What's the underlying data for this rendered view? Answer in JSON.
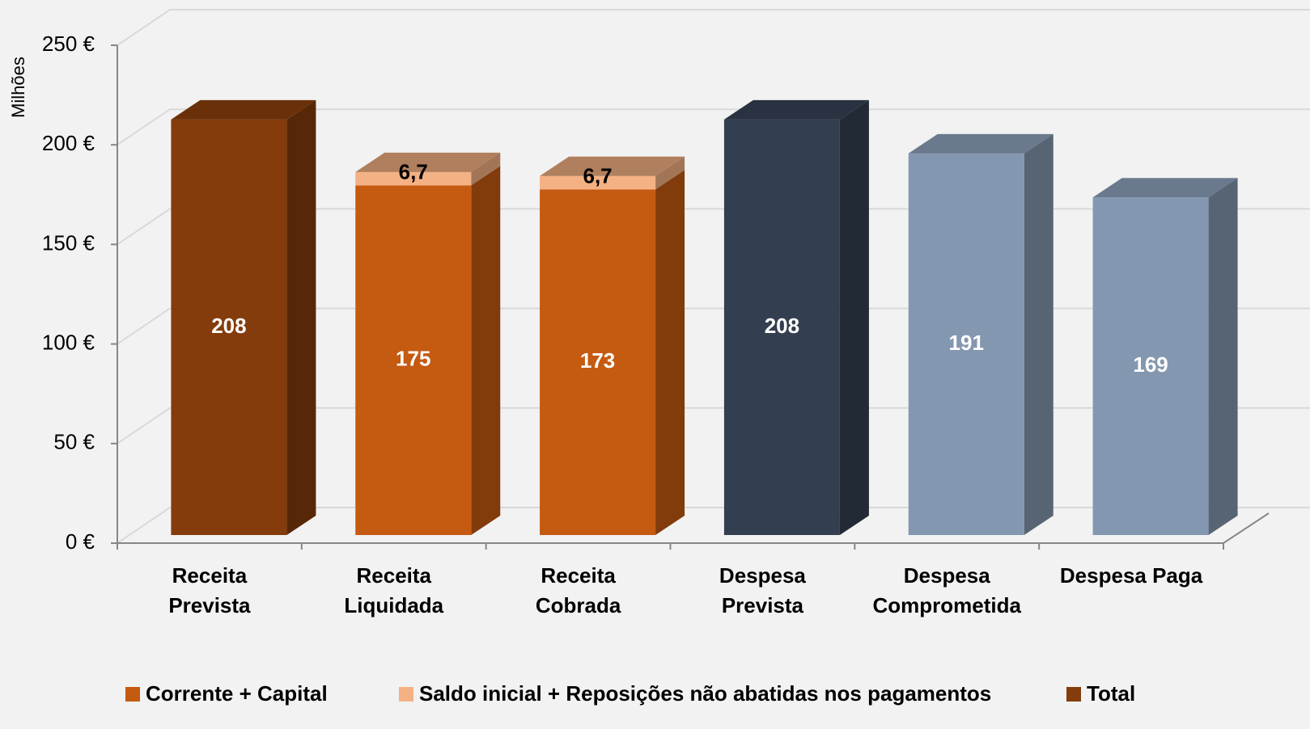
{
  "chart_data": {
    "type": "bar3d_stacked",
    "y_label": "Milhões",
    "categories": [
      [
        "Receita",
        "Prevista"
      ],
      [
        "Receita",
        "Liquidada"
      ],
      [
        "Receita",
        "Cobrada"
      ],
      [
        "Despesa",
        "Prevista"
      ],
      [
        "Despesa",
        "Comprometida"
      ],
      [
        "Despesa Paga"
      ]
    ],
    "series": [
      {
        "name": "Corrente + Capital",
        "color": "#c55a11",
        "values": [
          null,
          175,
          173,
          null,
          null,
          null
        ]
      },
      {
        "name": "Saldo inicial + Reposições não abatidas nos pagamentos",
        "color": "#f4b183",
        "values": [
          null,
          6.7,
          6.7,
          null,
          null,
          null
        ],
        "value_labels": [
          null,
          "6,7",
          "6,7",
          null,
          null,
          null
        ]
      },
      {
        "name": "Total",
        "color": "#843c0c",
        "values": [
          208,
          null,
          null,
          208,
          191,
          169
        ],
        "colors": [
          "#843c0c",
          null,
          null,
          "#333f50",
          "#8497b0",
          "#8497b0"
        ]
      }
    ],
    "ylim": [
      0,
      250
    ],
    "yticks": [
      {
        "value": 0,
        "label": "0 €"
      },
      {
        "value": 50,
        "label": "50 €"
      },
      {
        "value": 100,
        "label": "100 €"
      },
      {
        "value": 150,
        "label": "150 €"
      },
      {
        "value": 200,
        "label": "200 €"
      },
      {
        "value": 250,
        "label": "250 €"
      }
    ],
    "grid": true
  }
}
